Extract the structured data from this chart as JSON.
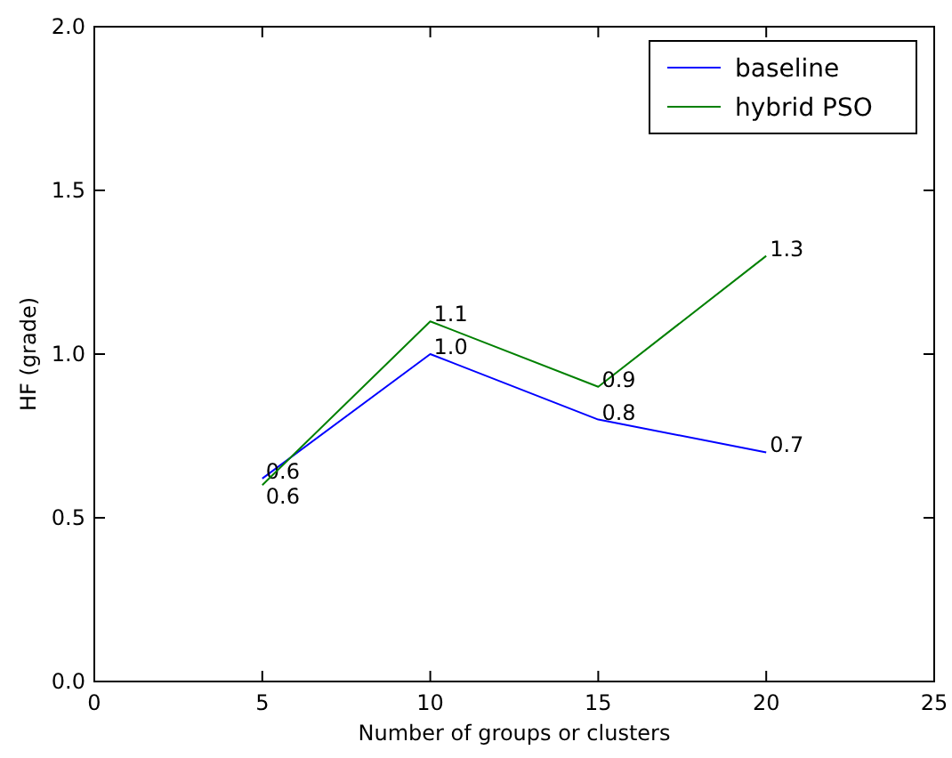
{
  "chart_data": {
    "type": "line",
    "xlabel": "Number of groups or clusters",
    "ylabel": "HF (grade)",
    "x": [
      5,
      10,
      15,
      20
    ],
    "series": [
      {
        "name": "baseline",
        "color": "#0000ff",
        "values": [
          0.62,
          1.0,
          0.8,
          0.7
        ],
        "value_labels": [
          "0.6",
          "1.0",
          "0.8",
          "0.7"
        ]
      },
      {
        "name": "hybrid PSO",
        "color": "#008000",
        "values": [
          0.6,
          1.1,
          0.9,
          1.3
        ],
        "value_labels": [
          "0.6",
          "1.1",
          "0.9",
          "1.3"
        ]
      }
    ],
    "xlim": [
      0,
      25
    ],
    "xticks": [
      0,
      5,
      10,
      15,
      20,
      25
    ],
    "ylim": [
      0,
      2
    ],
    "yticks": [
      {
        "value": 0,
        "label": "0.0"
      },
      {
        "value": 0.5,
        "label": "0.5"
      },
      {
        "value": 1,
        "label": "1.0"
      },
      {
        "value": 1.5,
        "label": "1.5"
      },
      {
        "value": 2,
        "label": "2.0"
      }
    ],
    "grid": false,
    "legend": "top right",
    "marker": "none",
    "line_style": "solid"
  }
}
